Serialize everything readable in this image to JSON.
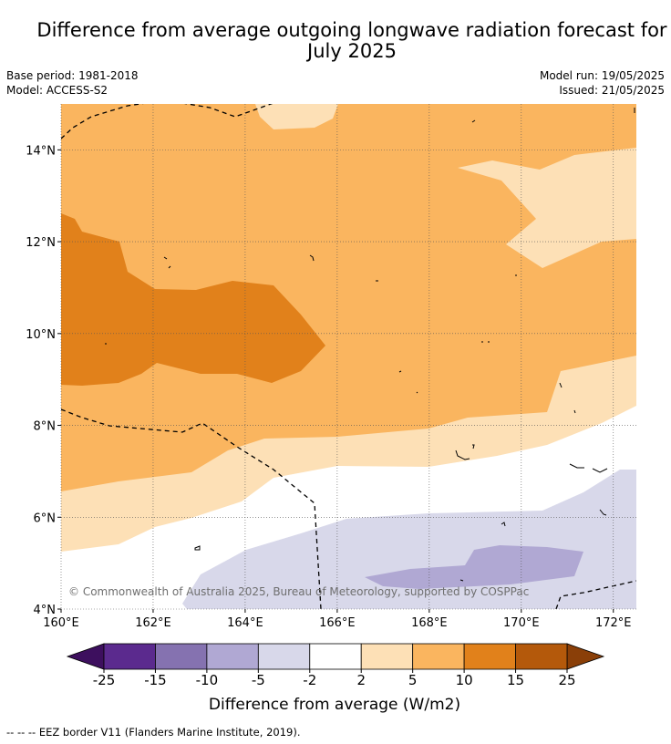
{
  "title": "Difference from average outgoing longwave radiation forecast for July 2025",
  "title_lines": [
    "Difference from average outgoing longwave radiation forecast for",
    "July 2025"
  ],
  "base_period": "Base period: 1981-2018",
  "model": "Model: ACCESS-S2",
  "model_run": "Model run: 19/05/2025",
  "issued": "Issued: 21/05/2025",
  "copyright": "© Commonwealth of Australia 2025, Bureau of Meteorology, supported by COSPPac",
  "footer": "--  --  -- EEZ border V11 (Flanders Marine Institute, 2019).",
  "map": {
    "lon_range": [
      160,
      172.5
    ],
    "lat_range": [
      4,
      15
    ],
    "x_ticks": [
      "160°E",
      "162°E",
      "164°E",
      "166°E",
      "168°E",
      "170°E",
      "172°E"
    ],
    "y_ticks": [
      "4°N",
      "6°N",
      "8°N",
      "10°N",
      "12°N",
      "14°N"
    ],
    "grid": true
  },
  "colorbar": {
    "title": "Difference from average (W/m2)",
    "levels": [
      "-25",
      "-15",
      "-10",
      "-5",
      "-2",
      "2",
      "5",
      "10",
      "15",
      "25"
    ],
    "colors": [
      "#5b2a8e",
      "#8572b0",
      "#b0a8d3",
      "#d8d8ea",
      "#ffffff",
      "#fde0b6",
      "#fab55f",
      "#e1811b",
      "#b4590b"
    ],
    "under_color": "#3d0f5e",
    "over_color": "#8a3f08",
    "extend": "both"
  }
}
